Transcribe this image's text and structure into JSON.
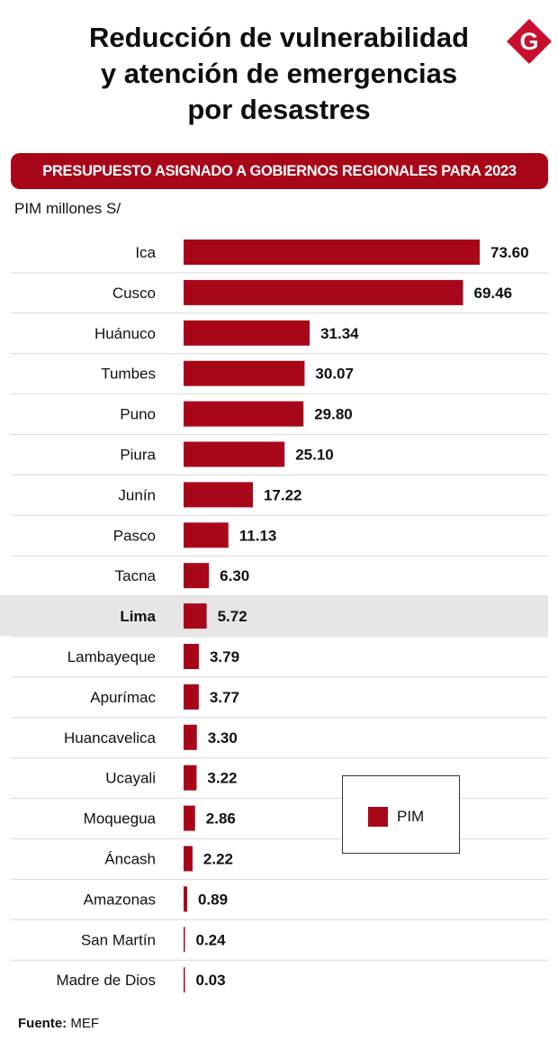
{
  "title_lines": [
    "Reducción de vulnerabilidad",
    "y atención de emergencias",
    "por desastres"
  ],
  "logo_letter": "G",
  "banner": "PRESUPUESTO ASIGNADO A GOBIERNOS REGIONALES PARA 2023",
  "unit_label": "PIM millones S/",
  "source": {
    "label": "Fuente:",
    "value": "MEF"
  },
  "colors": {
    "bar": "#a8071a",
    "banner": "#a8071a",
    "highlight_row": "#e6e6e6",
    "divider": "#d9d9d9"
  },
  "chart_data": {
    "type": "bar",
    "orientation": "horizontal",
    "categories": [
      "Ica",
      "Cusco",
      "Huánuco",
      "Tumbes",
      "Puno",
      "Piura",
      "Junín",
      "Pasco",
      "Tacna",
      "Lima",
      "Lambayeque",
      "Apurímac",
      "Huancavelica",
      "Ucayali",
      "Moquegua",
      "Áncash",
      "Amazonas",
      "San Martín",
      "Madre de Dios"
    ],
    "series": [
      {
        "name": "PIM",
        "values": [
          73.6,
          69.46,
          31.34,
          30.07,
          29.8,
          25.1,
          17.22,
          11.13,
          6.3,
          5.72,
          3.79,
          3.77,
          3.3,
          3.22,
          2.86,
          2.22,
          0.89,
          0.24,
          0.03
        ]
      }
    ],
    "data_labels": [
      "73.60",
      "69.46",
      "31.34",
      "30.07",
      "29.80",
      "25.10",
      "17.22",
      "11.13",
      "6.30",
      "5.72",
      "3.79",
      "3.77",
      "3.30",
      "3.22",
      "2.86",
      "2.22",
      "0.89",
      "0.24",
      "0.03"
    ],
    "highlighted_category": "Lima",
    "xlim": [
      0,
      73.6
    ],
    "legend": {
      "position": "bottom-right",
      "entries": [
        "PIM"
      ]
    },
    "grid": false
  }
}
